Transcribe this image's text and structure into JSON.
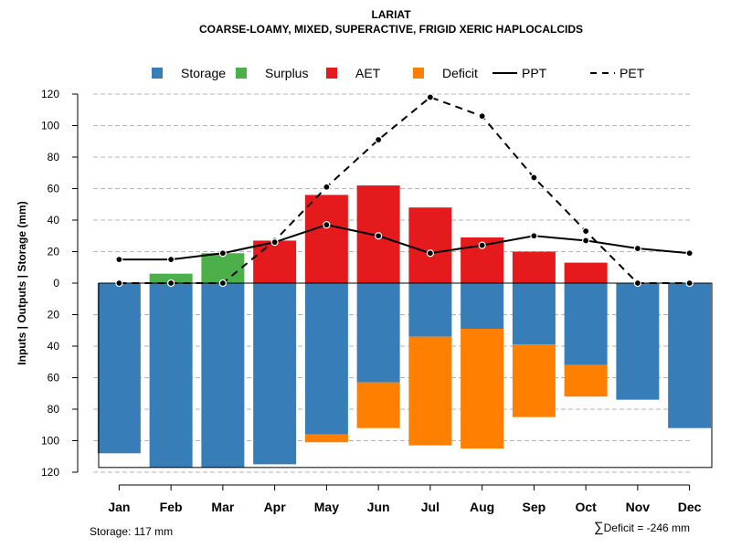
{
  "chart_data": {
    "type": "bar",
    "title": "LARIAT",
    "subtitle": "COARSE-LOAMY, MIXED, SUPERACTIVE, FRIGID XERIC HAPLOCALCIDS",
    "ylabel": "Inputs | Outputs | Storage    (mm)",
    "ylim": [
      -120,
      120
    ],
    "ytick_values": [
      120,
      100,
      80,
      60,
      40,
      20,
      0,
      -20,
      -40,
      -60,
      -80,
      -100,
      -120
    ],
    "ytick_labels": [
      "120",
      "100",
      "80",
      "60",
      "40",
      "20",
      "0",
      "20",
      "40",
      "60",
      "80",
      "100",
      "120"
    ],
    "categories": [
      "Jan",
      "Feb",
      "Mar",
      "Apr",
      "May",
      "Jun",
      "Jul",
      "Aug",
      "Sep",
      "Oct",
      "Nov",
      "Dec"
    ],
    "legend": [
      {
        "label": "Storage",
        "kind": "box",
        "color": "#377EB8"
      },
      {
        "label": "Surplus",
        "kind": "box",
        "color": "#4DAF4A"
      },
      {
        "label": "AET",
        "kind": "box",
        "color": "#E41A1C"
      },
      {
        "label": "Deficit",
        "kind": "box",
        "color": "#FF7F00"
      },
      {
        "label": "PPT",
        "kind": "solid"
      },
      {
        "label": "PET",
        "kind": "dashed"
      }
    ],
    "series": [
      {
        "name": "Surplus",
        "color": "#4DAF4A",
        "values": [
          0,
          6,
          19,
          0,
          0,
          0,
          0,
          0,
          0,
          0,
          0,
          0
        ]
      },
      {
        "name": "AET",
        "color": "#E41A1C",
        "values": [
          0,
          0,
          0,
          27,
          56,
          62,
          48,
          29,
          20,
          13,
          0,
          0
        ]
      },
      {
        "name": "Storage",
        "color": "#377EB8",
        "values": [
          108,
          117,
          117,
          115,
          96,
          63,
          34,
          29,
          39,
          52,
          74,
          92
        ]
      },
      {
        "name": "Deficit",
        "color": "#FF7F00",
        "values": [
          0,
          0,
          0,
          0,
          5,
          29,
          69,
          76,
          46,
          20,
          0,
          0
        ]
      },
      {
        "name": "PPT",
        "style": "solid",
        "values": [
          15,
          15,
          19,
          26,
          37,
          30,
          19,
          24,
          30,
          27,
          22,
          19
        ]
      },
      {
        "name": "PET",
        "style": "dashed",
        "values": [
          0,
          0,
          0,
          27,
          61,
          91,
          118,
          106,
          67,
          33,
          0,
          0
        ]
      }
    ],
    "max_storage": 117,
    "storage_text": "Storage: 117 mm",
    "deficit_symbol": "∑",
    "deficit_text": "Deficit = -246 mm"
  }
}
